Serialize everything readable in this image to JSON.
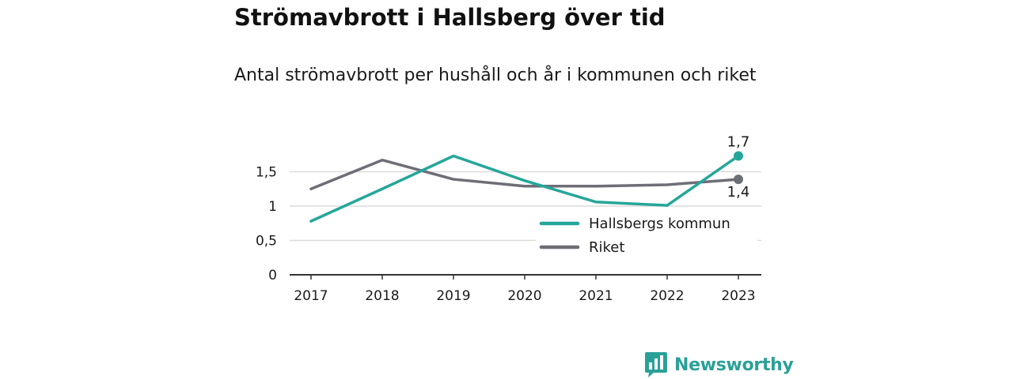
{
  "header": {
    "title": "Strömavbrott i Hallsberg över tid",
    "subtitle": "Antal strömavbrott per hushåll och år i kommunen och riket"
  },
  "brand": {
    "name": "Newsworthy",
    "icon": "newsworthy-logo-icon",
    "color": "#2aa198"
  },
  "chart_data": {
    "type": "line",
    "x": [
      "2017",
      "2018",
      "2019",
      "2020",
      "2021",
      "2022",
      "2023"
    ],
    "ylim": [
      0,
      1.75
    ],
    "yticks": [
      0,
      0.5,
      1,
      1.5
    ],
    "ytick_labels": [
      "0",
      "0,5",
      "1",
      "1,5"
    ],
    "grid": true,
    "legend_position": "bottom-right",
    "series": [
      {
        "name": "Hallsbergs kommun",
        "color": "#26a69a",
        "values": [
          0.78,
          1.25,
          1.73,
          1.37,
          1.06,
          1.01,
          1.73
        ],
        "end_label": "1,7"
      },
      {
        "name": "Riket",
        "color": "#6e6e76",
        "values": [
          1.25,
          1.67,
          1.39,
          1.29,
          1.29,
          1.31,
          1.39
        ],
        "end_label": "1,4"
      }
    ]
  }
}
